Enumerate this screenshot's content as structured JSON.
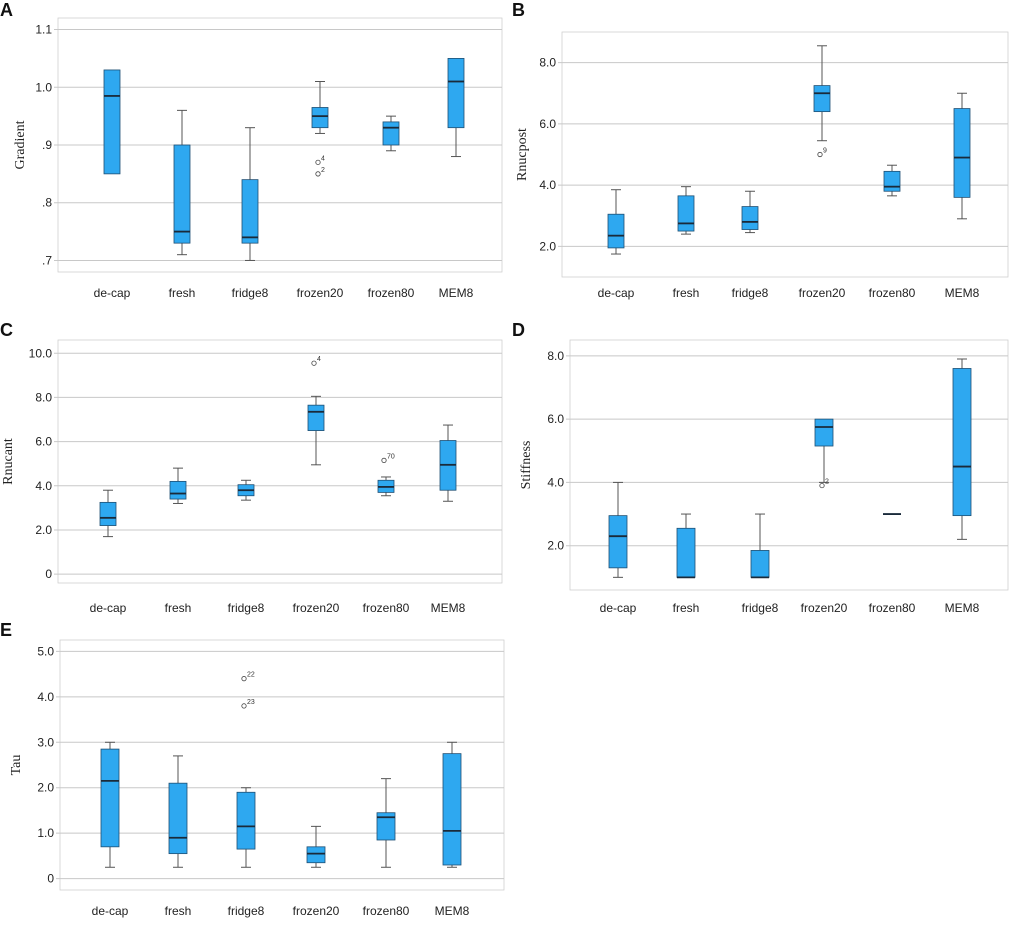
{
  "figure": {
    "box_color": "#2EA8F0",
    "median_color": "#1a2a3a",
    "whisker_color": "#555555",
    "grid_color": "#c8c8c8"
  },
  "chart_data": [
    {
      "panel": "A",
      "type": "box",
      "ylabel": "Gradient",
      "ylim": [
        0.68,
        1.12
      ],
      "ticks": [
        {
          "v": 0.7,
          "t": ".7"
        },
        {
          "v": 0.8,
          "t": ".8"
        },
        {
          "v": 0.9,
          "t": ".9"
        },
        {
          "v": 1.0,
          "t": "1.0"
        },
        {
          "v": 1.1,
          "t": "1.1"
        }
      ],
      "categories": [
        "de-cap",
        "fresh",
        "fridge8",
        "frozen20",
        "frozen80",
        "MEM8"
      ],
      "boxes": [
        {
          "min": null,
          "q1": 0.85,
          "median": 0.985,
          "q3": 1.03,
          "max": null,
          "outliers": []
        },
        {
          "min": 0.71,
          "q1": 0.73,
          "median": 0.75,
          "q3": 0.9,
          "max": 0.96,
          "outliers": []
        },
        {
          "min": 0.7,
          "q1": 0.73,
          "median": 0.74,
          "q3": 0.84,
          "max": 0.93,
          "outliers": []
        },
        {
          "min": 0.92,
          "q1": 0.93,
          "median": 0.95,
          "q3": 0.965,
          "max": 1.01,
          "outliers": [
            {
              "v": 0.87,
              "label": "4"
            },
            {
              "v": 0.85,
              "label": "2"
            }
          ]
        },
        {
          "min": 0.89,
          "q1": 0.9,
          "median": 0.93,
          "q3": 0.94,
          "max": 0.95,
          "outliers": []
        },
        {
          "min": 0.88,
          "q1": 0.93,
          "median": 1.01,
          "q3": 1.05,
          "max": null,
          "outliers": []
        }
      ]
    },
    {
      "panel": "B",
      "type": "box",
      "ylabel": "Rnucpost",
      "ylim": [
        1.0,
        9.0
      ],
      "ticks": [
        {
          "v": 2,
          "t": "2.0"
        },
        {
          "v": 4,
          "t": "4.0"
        },
        {
          "v": 6,
          "t": "6.0"
        },
        {
          "v": 8,
          "t": "8.0"
        }
      ],
      "categories": [
        "de-cap",
        "fresh",
        "fridge8",
        "frozen20",
        "frozen80",
        "MEM8"
      ],
      "boxes": [
        {
          "min": 1.75,
          "q1": 1.95,
          "median": 2.35,
          "q3": 3.05,
          "max": 3.85,
          "outliers": []
        },
        {
          "min": 2.4,
          "q1": 2.5,
          "median": 2.75,
          "q3": 3.65,
          "max": 3.95,
          "outliers": []
        },
        {
          "min": 2.45,
          "q1": 2.55,
          "median": 2.8,
          "q3": 3.3,
          "max": 3.8,
          "outliers": []
        },
        {
          "min": 5.45,
          "q1": 6.4,
          "median": 7.0,
          "q3": 7.25,
          "max": 8.55,
          "outliers": [
            {
              "v": 5.0,
              "label": "9"
            }
          ]
        },
        {
          "min": 3.65,
          "q1": 3.8,
          "median": 3.95,
          "q3": 4.45,
          "max": 4.65,
          "outliers": []
        },
        {
          "min": 2.9,
          "q1": 3.6,
          "median": 4.9,
          "q3": 6.5,
          "max": 7.0,
          "outliers": []
        }
      ]
    },
    {
      "panel": "C",
      "type": "box",
      "ylabel": "Rnucant",
      "ylim": [
        -0.4,
        10.6
      ],
      "ticks": [
        {
          "v": 0,
          "t": "0"
        },
        {
          "v": 2,
          "t": "2.0"
        },
        {
          "v": 4,
          "t": "4.0"
        },
        {
          "v": 6,
          "t": "6.0"
        },
        {
          "v": 8,
          "t": "8.0"
        },
        {
          "v": 10,
          "t": "10.0"
        }
      ],
      "categories": [
        "de-cap",
        "fresh",
        "fridge8",
        "frozen20",
        "frozen80",
        "MEM8"
      ],
      "boxes": [
        {
          "min": 1.7,
          "q1": 2.2,
          "median": 2.55,
          "q3": 3.25,
          "max": 3.8,
          "outliers": []
        },
        {
          "min": 3.2,
          "q1": 3.4,
          "median": 3.65,
          "q3": 4.2,
          "max": 4.8,
          "outliers": []
        },
        {
          "min": 3.35,
          "q1": 3.55,
          "median": 3.8,
          "q3": 4.05,
          "max": 4.25,
          "outliers": []
        },
        {
          "min": 4.95,
          "q1": 6.5,
          "median": 7.35,
          "q3": 7.65,
          "max": 8.05,
          "outliers": [
            {
              "v": 9.55,
              "label": "4"
            }
          ]
        },
        {
          "min": 3.55,
          "q1": 3.7,
          "median": 3.95,
          "q3": 4.25,
          "max": 4.4,
          "outliers": [
            {
              "v": 5.15,
              "label": "70"
            }
          ]
        },
        {
          "min": 3.3,
          "q1": 3.8,
          "median": 4.95,
          "q3": 6.05,
          "max": 6.75,
          "outliers": []
        }
      ]
    },
    {
      "panel": "D",
      "type": "box",
      "ylabel": "Stiffness",
      "ylim": [
        0.6,
        8.5
      ],
      "ticks": [
        {
          "v": 2,
          "t": "2.0"
        },
        {
          "v": 4,
          "t": "4.0"
        },
        {
          "v": 6,
          "t": "6.0"
        },
        {
          "v": 8,
          "t": "8.0"
        }
      ],
      "categories": [
        "de-cap",
        "fresh",
        "fridge8",
        "frozen20",
        "frozen80",
        "MEM8"
      ],
      "boxes": [
        {
          "min": 1.0,
          "q1": 1.3,
          "median": 2.3,
          "q3": 2.95,
          "max": 4.0,
          "outliers": []
        },
        {
          "min": null,
          "q1": 1.0,
          "median": 1.0,
          "q3": 2.55,
          "max": 3.0,
          "outliers": []
        },
        {
          "min": null,
          "q1": 1.0,
          "median": 1.0,
          "q3": 1.85,
          "max": 3.0,
          "outliers": []
        },
        {
          "min": 4.0,
          "q1": 5.15,
          "median": 5.75,
          "q3": 6.0,
          "max": null,
          "outliers": [
            {
              "v": 3.9,
              "label": "2"
            }
          ]
        },
        {
          "min": null,
          "q1": 3.0,
          "median": 3.0,
          "q3": 3.0,
          "max": null,
          "outliers": []
        },
        {
          "min": 2.2,
          "q1": 2.95,
          "median": 4.5,
          "q3": 7.6,
          "max": 7.9,
          "outliers": []
        }
      ]
    },
    {
      "panel": "E",
      "type": "box",
      "ylabel": "Tau",
      "ylim": [
        -0.25,
        5.25
      ],
      "ticks": [
        {
          "v": 0,
          "t": "0"
        },
        {
          "v": 1,
          "t": "1.0"
        },
        {
          "v": 2,
          "t": "2.0"
        },
        {
          "v": 3,
          "t": "3.0"
        },
        {
          "v": 4,
          "t": "4.0"
        },
        {
          "v": 5,
          "t": "5.0"
        }
      ],
      "categories": [
        "de-cap",
        "fresh",
        "fridge8",
        "frozen20",
        "frozen80",
        "MEM8"
      ],
      "boxes": [
        {
          "min": 0.25,
          "q1": 0.7,
          "median": 2.15,
          "q3": 2.85,
          "max": 3.0,
          "outliers": []
        },
        {
          "min": 0.25,
          "q1": 0.55,
          "median": 0.9,
          "q3": 2.1,
          "max": 2.7,
          "outliers": []
        },
        {
          "min": 0.25,
          "q1": 0.65,
          "median": 1.15,
          "q3": 1.9,
          "max": 2.0,
          "outliers": [
            {
              "v": 4.4,
              "label": "22"
            },
            {
              "v": 3.8,
              "label": "23"
            }
          ]
        },
        {
          "min": 0.25,
          "q1": 0.35,
          "median": 0.55,
          "q3": 0.7,
          "max": 1.15,
          "outliers": []
        },
        {
          "min": 0.25,
          "q1": 0.85,
          "median": 1.35,
          "q3": 1.45,
          "max": 2.2,
          "outliers": []
        },
        {
          "min": 0.25,
          "q1": 0.3,
          "median": 1.05,
          "q3": 2.75,
          "max": 3.0,
          "outliers": []
        }
      ]
    }
  ]
}
